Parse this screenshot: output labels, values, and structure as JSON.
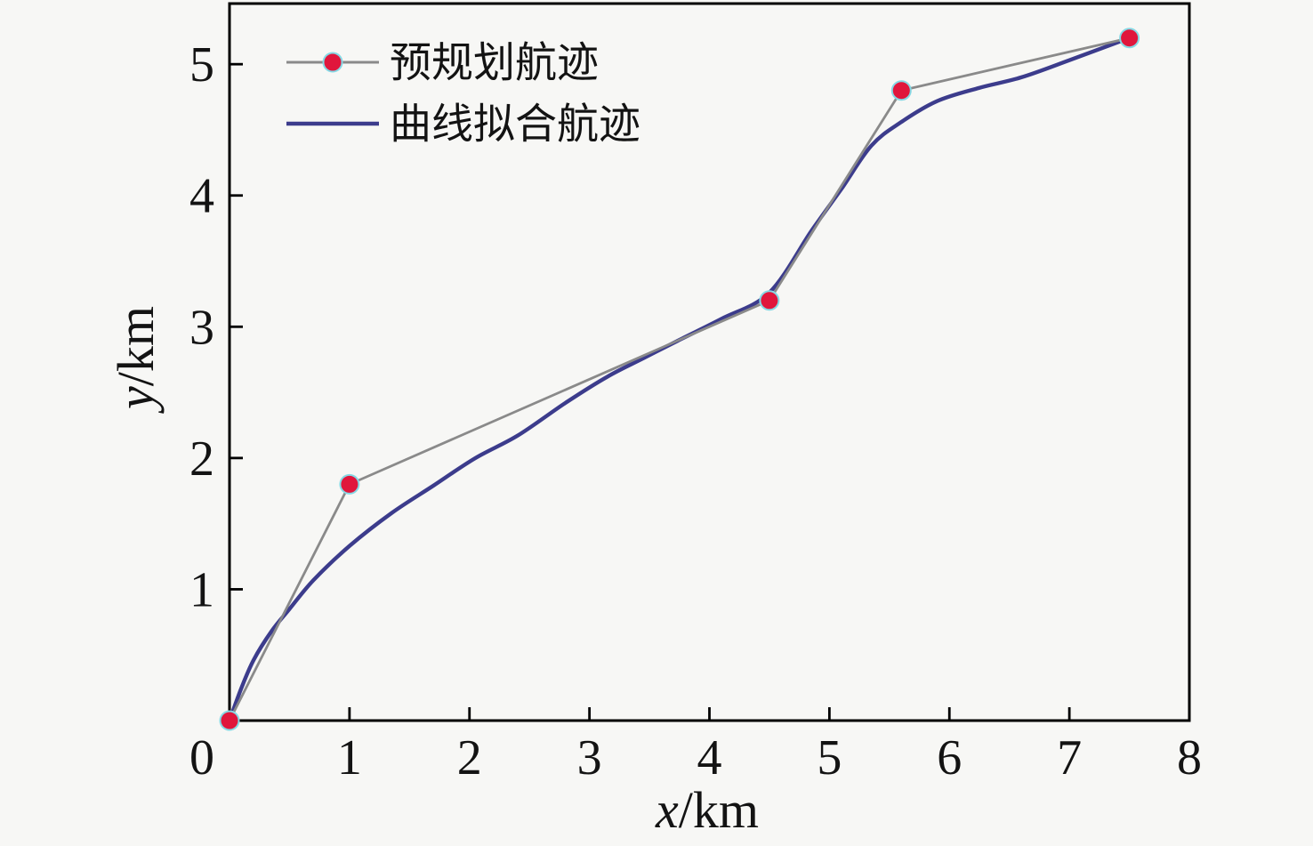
{
  "figure": {
    "background": "#f7f7f5"
  },
  "axes": {
    "x_label_var": "x",
    "x_label_rest": "/km",
    "y_label_var": "y",
    "y_label_rest": "/km",
    "x_ticks": [
      0,
      1,
      2,
      3,
      4,
      5,
      6,
      7,
      8
    ],
    "y_ticks": [
      1,
      2,
      3,
      4,
      5
    ]
  },
  "legend": {
    "items": [
      {
        "label": "预规划航迹",
        "marker": "red-dot-on-gray-line"
      },
      {
        "label": "曲线拟合航迹",
        "marker": "dark-blue-line"
      }
    ]
  },
  "chart_data": {
    "type": "line",
    "title": "",
    "xlabel": "x/km",
    "ylabel": "y/km",
    "xlim": [
      0,
      8
    ],
    "ylim": [
      0,
      5.462
    ],
    "grid": false,
    "legend_position": "upper-left",
    "series": [
      {
        "name": "预规划航迹",
        "kind": "waypoints",
        "line_style": "straight segments",
        "x": [
          0,
          1,
          4.5,
          5.6,
          7.5
        ],
        "y": [
          0,
          1.8,
          3.2,
          4.8,
          5.2
        ]
      },
      {
        "name": "曲线拟合航迹",
        "kind": "fitted-curve",
        "line_style": "smooth",
        "x": [
          0,
          0.1,
          0.2,
          0.35,
          0.5,
          0.7,
          1.0,
          1.35,
          1.7,
          2.05,
          2.4,
          2.8,
          3.15,
          3.45,
          3.75,
          4.1,
          4.5,
          4.85,
          5.1,
          5.35,
          5.6,
          5.9,
          6.25,
          6.6,
          7.0,
          7.5
        ],
        "y": [
          0,
          0.25,
          0.46,
          0.68,
          0.85,
          1.07,
          1.33,
          1.58,
          1.79,
          2.0,
          2.17,
          2.42,
          2.62,
          2.76,
          2.9,
          3.06,
          3.26,
          3.73,
          4.05,
          4.38,
          4.56,
          4.72,
          4.82,
          4.9,
          5.03,
          5.2
        ]
      }
    ],
    "colors": {
      "waypoint_line": "#8a8a8a",
      "marker_fill": "#e0163c",
      "marker_edge": "#86d8e4",
      "fitted_line": "#3c3c8c",
      "axis": "#000000",
      "text": "#131313"
    }
  }
}
